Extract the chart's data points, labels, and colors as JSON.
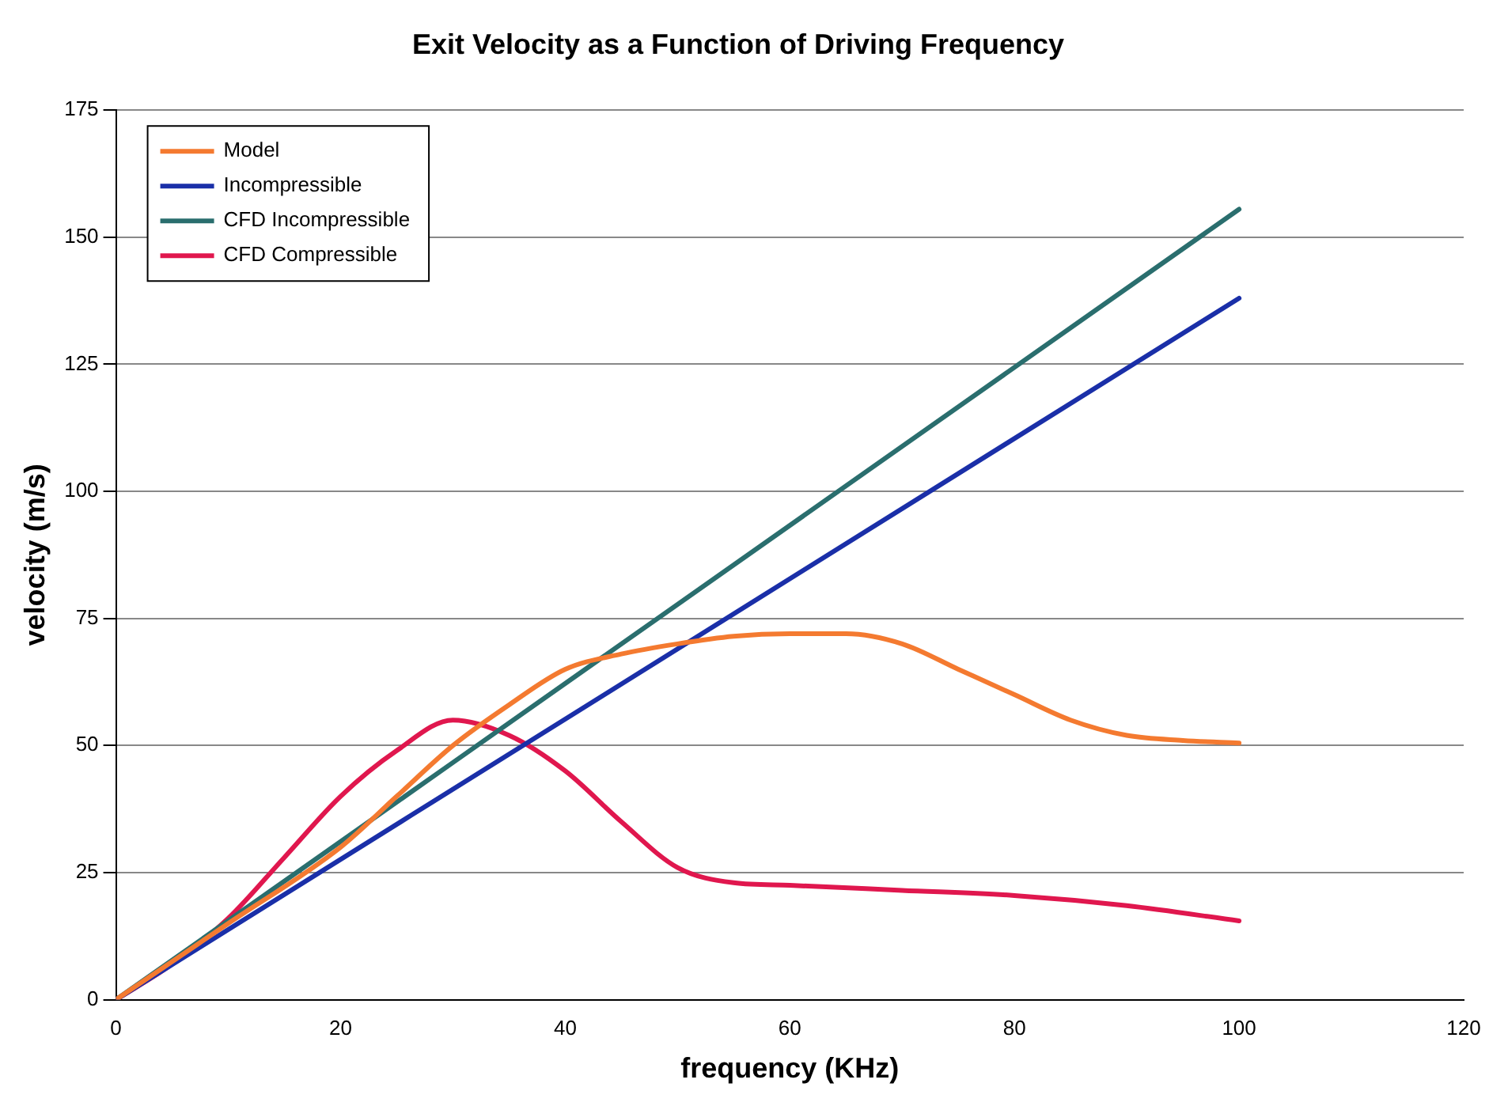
{
  "chart_data": {
    "type": "line",
    "title": "Exit Velocity as a Function of Driving Frequency",
    "xlabel": "frequency (KHz)",
    "ylabel": "velocity (m/s)",
    "xlim": [
      0,
      120
    ],
    "xticks": [
      0,
      20,
      40,
      60,
      80,
      100,
      120
    ],
    "ylim": [
      0,
      175
    ],
    "yticks": [
      0,
      25,
      50,
      75,
      100,
      125,
      150,
      175
    ],
    "grid": "y",
    "legend": "top left",
    "marker": "none",
    "line_style": "solid",
    "series": [
      {
        "name": "Model",
        "color": "#f47a30",
        "x": [
          0,
          10,
          20,
          25,
          30,
          35,
          40,
          45,
          50,
          55,
          60,
          65,
          70,
          75,
          80,
          85,
          90,
          95,
          100
        ],
        "values": [
          0,
          15,
          30,
          40,
          50,
          58,
          65,
          68,
          70,
          71.5,
          72,
          72,
          70,
          65,
          60,
          55,
          52,
          51,
          50.5
        ]
      },
      {
        "name": "Incompressible",
        "color": "#1a2fa8",
        "x": [
          0,
          100
        ],
        "values": [
          0,
          138
        ]
      },
      {
        "name": "CFD Incompressible",
        "color": "#2a6e6e",
        "x": [
          0,
          100
        ],
        "values": [
          0,
          155.5
        ]
      },
      {
        "name": "CFD Compressible",
        "color": "#e0174e",
        "x": [
          0,
          5,
          10,
          15,
          20,
          25,
          30,
          35,
          40,
          45,
          50,
          55,
          60,
          70,
          80,
          90,
          100
        ],
        "values": [
          0,
          7,
          16,
          28,
          40,
          49,
          55,
          52,
          45,
          35,
          26,
          23,
          22.5,
          21.5,
          20.5,
          18.5,
          15.5
        ]
      }
    ]
  }
}
